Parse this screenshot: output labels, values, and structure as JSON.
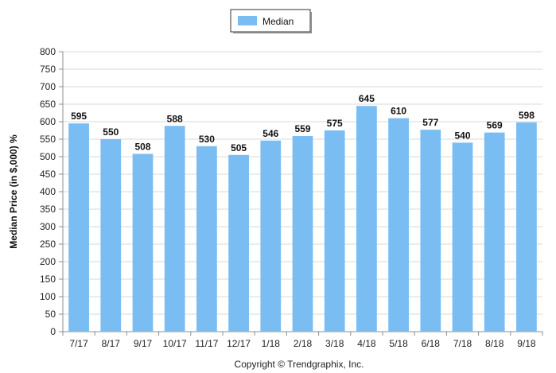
{
  "chart_data": {
    "type": "bar",
    "categories": [
      "7/17",
      "8/17",
      "9/17",
      "10/17",
      "11/17",
      "12/17",
      "1/18",
      "2/18",
      "3/18",
      "4/18",
      "5/18",
      "6/18",
      "7/18",
      "8/18",
      "9/18"
    ],
    "series": [
      {
        "name": "Median",
        "values": [
          595,
          550,
          508,
          588,
          530,
          505,
          546,
          559,
          575,
          645,
          610,
          577,
          540,
          569,
          598
        ],
        "color": "#79bdf2"
      }
    ],
    "title": "",
    "xlabel": "",
    "ylabel": "Median Price (in $,000) %",
    "ylim": [
      0,
      800
    ],
    "yticks": [
      0,
      50,
      100,
      150,
      200,
      250,
      300,
      350,
      400,
      450,
      500,
      550,
      600,
      650,
      700,
      750,
      800
    ],
    "grid": true,
    "legend_position": "top-center",
    "data_labels": true
  },
  "footer": {
    "copyright": "Copyright © Trendgraphix, Inc."
  },
  "colors": {
    "bar": "#79bdf2",
    "grid": "#d9d9d9",
    "axis": "#8c8c8c"
  }
}
